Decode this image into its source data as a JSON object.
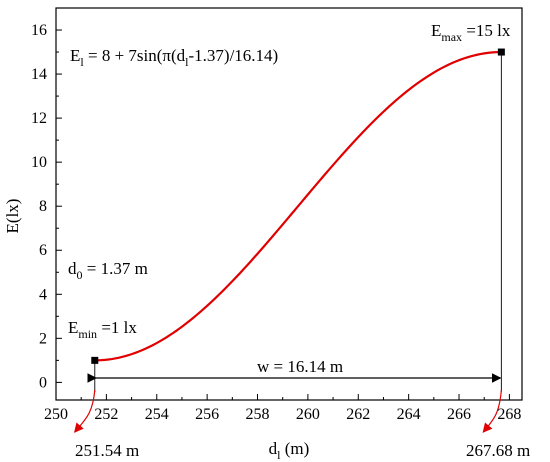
{
  "chart_data": {
    "type": "line",
    "xlabel": "d",
    "xlabel_sub": "l",
    "xlabel_unit": " (m)",
    "ylabel": "E(lx)",
    "xlim": [
      250,
      268.5
    ],
    "ylim": [
      -0.8,
      17
    ],
    "xticks": [
      250,
      252,
      254,
      256,
      258,
      260,
      262,
      264,
      266,
      268
    ],
    "yticks": [
      0,
      2,
      4,
      6,
      8,
      10,
      12,
      14,
      16
    ],
    "series": [
      {
        "color": "#e00000",
        "x": [
          251.54,
          252.0,
          252.5,
          253.0,
          253.5,
          254.0,
          254.5,
          255.0,
          255.5,
          256.0,
          256.5,
          257.0,
          257.5,
          258.0,
          258.5,
          259.0,
          259.5,
          260.0,
          260.5,
          261.0,
          261.5,
          262.0,
          262.5,
          263.0,
          263.5,
          264.0,
          264.5,
          265.0,
          265.5,
          266.0,
          266.5,
          267.0,
          267.68
        ],
        "y": [
          1.0,
          1.03,
          1.13,
          1.3,
          1.54,
          1.83,
          2.18,
          2.58,
          3.03,
          3.51,
          4.02,
          4.56,
          5.11,
          5.68,
          6.26,
          6.84,
          7.42,
          8.0,
          8.58,
          9.15,
          9.71,
          10.24,
          10.75,
          11.23,
          11.68,
          12.08,
          12.44,
          12.75,
          13.0,
          13.18,
          13.3,
          13.35,
          15.0
        ]
      }
    ],
    "points": [
      {
        "x": 251.54,
        "y": 1.0
      },
      {
        "x": 267.68,
        "y": 15.0
      }
    ],
    "annotations": {
      "formula": "E",
      "formula_sub": "l",
      "formula_rest": " = 8 + 7sin(π(d",
      "formula_sub2": "l",
      "formula_end": "-1.37)/16.14)",
      "d0_main": "d",
      "d0_sub": "0",
      "d0_rest": " = 1.37 m",
      "emin_main": "E",
      "emin_sub": "min",
      "emin_rest": " =1 lx",
      "emax_main": "E",
      "emax_sub": "max",
      "emax_rest": " =15 lx",
      "width_label": "w = 16.14 m",
      "left_marker": "251.54 m",
      "right_marker": "267.68 m"
    }
  }
}
